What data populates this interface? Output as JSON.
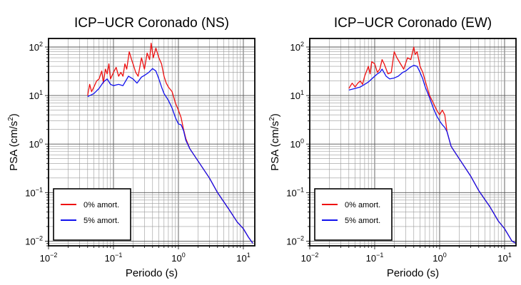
{
  "chart_data": [
    {
      "type": "line",
      "title": "ICP−UCR Coronado (NS)",
      "xlabel": "Periodo (s)",
      "ylabel_main": "PSA (cm/s",
      "ylabel_sup": "2",
      "ylabel_end": ")",
      "xscale": "log",
      "yscale": "log",
      "xlim": [
        0.01,
        15
      ],
      "ylim": [
        0.008,
        150
      ],
      "grid": true,
      "legend_position": "bottom-left",
      "x_ticks": [
        {
          "base": "10",
          "exp": "−2",
          "value": 0.01
        },
        {
          "base": "10",
          "exp": "−1",
          "value": 0.1
        },
        {
          "base": "10",
          "exp": "0",
          "value": 1
        },
        {
          "base": "10",
          "exp": "1",
          "value": 10
        }
      ],
      "y_ticks": [
        {
          "base": "10",
          "exp": "−2",
          "value": 0.01
        },
        {
          "base": "10",
          "exp": "−1",
          "value": 0.1
        },
        {
          "base": "10",
          "exp": "0",
          "value": 1
        },
        {
          "base": "10",
          "exp": "1",
          "value": 10
        },
        {
          "base": "10",
          "exp": "2",
          "value": 100
        }
      ],
      "series": [
        {
          "name": "0% amort.",
          "color": "#ee1111",
          "points": [
            [
              0.04,
              10
            ],
            [
              0.043,
              17
            ],
            [
              0.046,
              12
            ],
            [
              0.05,
              15
            ],
            [
              0.055,
              20
            ],
            [
              0.06,
              22
            ],
            [
              0.066,
              32
            ],
            [
              0.07,
              18
            ],
            [
              0.075,
              35
            ],
            [
              0.08,
              28
            ],
            [
              0.085,
              45
            ],
            [
              0.09,
              22
            ],
            [
              0.1,
              30
            ],
            [
              0.11,
              38
            ],
            [
              0.12,
              25
            ],
            [
              0.13,
              30
            ],
            [
              0.14,
              25
            ],
            [
              0.15,
              45
            ],
            [
              0.16,
              35
            ],
            [
              0.175,
              80
            ],
            [
              0.19,
              55
            ],
            [
              0.2,
              45
            ],
            [
              0.22,
              30
            ],
            [
              0.24,
              25
            ],
            [
              0.27,
              60
            ],
            [
              0.3,
              35
            ],
            [
              0.33,
              75
            ],
            [
              0.36,
              55
            ],
            [
              0.38,
              120
            ],
            [
              0.41,
              60
            ],
            [
              0.45,
              95
            ],
            [
              0.5,
              60
            ],
            [
              0.55,
              45
            ],
            [
              0.6,
              25
            ],
            [
              0.65,
              18
            ],
            [
              0.7,
              15
            ],
            [
              0.8,
              12
            ],
            [
              0.9,
              7
            ],
            [
              1.0,
              5
            ],
            [
              1.1,
              3.5
            ],
            [
              1.2,
              2
            ],
            [
              1.3,
              1.3
            ],
            [
              1.5,
              0.8
            ],
            [
              2,
              0.45
            ],
            [
              3,
              0.2
            ],
            [
              4,
              0.1
            ],
            [
              6,
              0.045
            ],
            [
              8,
              0.025
            ],
            [
              10,
              0.018
            ],
            [
              12,
              0.012
            ],
            [
              14,
              0.009
            ]
          ]
        },
        {
          "name": "5% amort.",
          "color": "#1111ee",
          "points": [
            [
              0.04,
              9.5
            ],
            [
              0.05,
              11
            ],
            [
              0.06,
              14
            ],
            [
              0.07,
              19
            ],
            [
              0.08,
              22
            ],
            [
              0.09,
              17
            ],
            [
              0.1,
              16
            ],
            [
              0.12,
              17
            ],
            [
              0.14,
              16
            ],
            [
              0.17,
              25
            ],
            [
              0.2,
              22
            ],
            [
              0.23,
              18
            ],
            [
              0.27,
              24
            ],
            [
              0.3,
              26
            ],
            [
              0.35,
              30
            ],
            [
              0.4,
              36
            ],
            [
              0.45,
              32
            ],
            [
              0.5,
              22
            ],
            [
              0.55,
              15
            ],
            [
              0.6,
              11
            ],
            [
              0.7,
              8
            ],
            [
              0.8,
              5.5
            ],
            [
              0.9,
              3.5
            ],
            [
              1.0,
              2.6
            ],
            [
              1.1,
              2.5
            ],
            [
              1.2,
              1.9
            ],
            [
              1.3,
              1.2
            ],
            [
              1.5,
              0.8
            ],
            [
              2,
              0.45
            ],
            [
              3,
              0.2
            ],
            [
              4,
              0.1
            ],
            [
              6,
              0.045
            ],
            [
              8,
              0.025
            ],
            [
              10,
              0.018
            ],
            [
              12,
              0.012
            ],
            [
              14,
              0.009
            ]
          ]
        }
      ]
    },
    {
      "type": "line",
      "title": "ICP−UCR Coronado (EW)",
      "xlabel": "Periodo (s)",
      "ylabel_main": "PSA (cm/s",
      "ylabel_sup": "2",
      "ylabel_end": ")",
      "xscale": "log",
      "yscale": "log",
      "xlim": [
        0.01,
        15
      ],
      "ylim": [
        0.008,
        150
      ],
      "grid": true,
      "legend_position": "bottom-left",
      "x_ticks": [
        {
          "base": "10",
          "exp": "−2",
          "value": 0.01
        },
        {
          "base": "10",
          "exp": "−1",
          "value": 0.1
        },
        {
          "base": "10",
          "exp": "0",
          "value": 1
        },
        {
          "base": "10",
          "exp": "1",
          "value": 10
        }
      ],
      "y_ticks": [
        {
          "base": "10",
          "exp": "−2",
          "value": 0.01
        },
        {
          "base": "10",
          "exp": "−1",
          "value": 0.1
        },
        {
          "base": "10",
          "exp": "0",
          "value": 1
        },
        {
          "base": "10",
          "exp": "1",
          "value": 10
        },
        {
          "base": "10",
          "exp": "2",
          "value": 100
        }
      ],
      "series": [
        {
          "name": "0% amort.",
          "color": "#ee1111",
          "points": [
            [
              0.04,
              14
            ],
            [
              0.045,
              18
            ],
            [
              0.05,
              15
            ],
            [
              0.055,
              18
            ],
            [
              0.06,
              20
            ],
            [
              0.065,
              17
            ],
            [
              0.07,
              25
            ],
            [
              0.08,
              40
            ],
            [
              0.085,
              28
            ],
            [
              0.09,
              50
            ],
            [
              0.1,
              45
            ],
            [
              0.11,
              30
            ],
            [
              0.12,
              35
            ],
            [
              0.13,
              55
            ],
            [
              0.14,
              45
            ],
            [
              0.16,
              28
            ],
            [
              0.18,
              30
            ],
            [
              0.2,
              80
            ],
            [
              0.22,
              60
            ],
            [
              0.25,
              45
            ],
            [
              0.28,
              35
            ],
            [
              0.32,
              60
            ],
            [
              0.36,
              55
            ],
            [
              0.4,
              100
            ],
            [
              0.42,
              70
            ],
            [
              0.45,
              80
            ],
            [
              0.5,
              40
            ],
            [
              0.55,
              30
            ],
            [
              0.6,
              20
            ],
            [
              0.7,
              10
            ],
            [
              0.8,
              7
            ],
            [
              0.9,
              5
            ],
            [
              1.0,
              4
            ],
            [
              1.1,
              5
            ],
            [
              1.2,
              4
            ],
            [
              1.3,
              1.8
            ],
            [
              1.5,
              0.9
            ],
            [
              2,
              0.5
            ],
            [
              3,
              0.22
            ],
            [
              4,
              0.11
            ],
            [
              6,
              0.05
            ],
            [
              8,
              0.026
            ],
            [
              10,
              0.018
            ],
            [
              13,
              0.01
            ],
            [
              15,
              0.009
            ]
          ]
        },
        {
          "name": "5% amort.",
          "color": "#1111ee",
          "points": [
            [
              0.04,
              13
            ],
            [
              0.05,
              14
            ],
            [
              0.06,
              15
            ],
            [
              0.07,
              17
            ],
            [
              0.08,
              19
            ],
            [
              0.09,
              22
            ],
            [
              0.1,
              25
            ],
            [
              0.11,
              28
            ],
            [
              0.12,
              30
            ],
            [
              0.13,
              35
            ],
            [
              0.15,
              25
            ],
            [
              0.17,
              22
            ],
            [
              0.2,
              23
            ],
            [
              0.23,
              25
            ],
            [
              0.27,
              30
            ],
            [
              0.3,
              32
            ],
            [
              0.35,
              38
            ],
            [
              0.4,
              42
            ],
            [
              0.45,
              40
            ],
            [
              0.5,
              30
            ],
            [
              0.55,
              22
            ],
            [
              0.6,
              15
            ],
            [
              0.7,
              9
            ],
            [
              0.8,
              5.5
            ],
            [
              0.9,
              3.8
            ],
            [
              1.0,
              3
            ],
            [
              1.1,
              2.5
            ],
            [
              1.2,
              2.2
            ],
            [
              1.3,
              1.8
            ],
            [
              1.5,
              0.9
            ],
            [
              2,
              0.5
            ],
            [
              3,
              0.22
            ],
            [
              4,
              0.11
            ],
            [
              6,
              0.05
            ],
            [
              8,
              0.026
            ],
            [
              10,
              0.018
            ],
            [
              13,
              0.01
            ],
            [
              15,
              0.009
            ]
          ]
        }
      ]
    }
  ]
}
